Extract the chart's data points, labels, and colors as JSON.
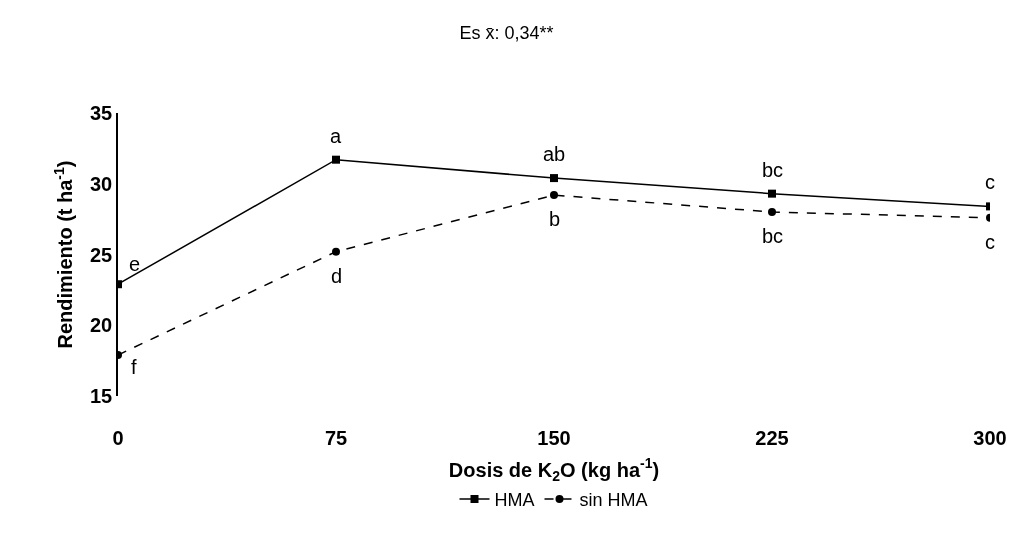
{
  "chart_data": {
    "type": "line",
    "title": "Es x̄: 0,34**",
    "xlabel": "Dosis de K$_{2}$O (kg ha$^{-1}$)",
    "ylabel": "Rendimiento (t ha$^{-1}$)",
    "x": [
      0,
      75,
      150,
      225,
      300
    ],
    "series": [
      {
        "name": "HMA",
        "color": "#000000",
        "marker": "square",
        "line_style": "solid",
        "values": [
          22.9,
          31.7,
          30.4,
          29.3,
          28.4
        ]
      },
      {
        "name": "sin HMA",
        "color": "#000000",
        "marker": "circle",
        "line_style": "dashed",
        "values": [
          17.9,
          25.2,
          29.2,
          28.0,
          27.6
        ]
      }
    ],
    "annotations": [
      {
        "text": "e",
        "x": 0,
        "y": 22.9
      },
      {
        "text": "a",
        "x": 75,
        "y": 31.7
      },
      {
        "text": "ab",
        "x": 150,
        "y": 30.4
      },
      {
        "text": "bc",
        "x": 225,
        "y": 29.3
      },
      {
        "text": "c",
        "x": 300,
        "y": 28.4
      },
      {
        "text": "f",
        "x": 0,
        "y": 17.9
      },
      {
        "text": "d",
        "x": 75,
        "y": 25.2
      },
      {
        "text": "b",
        "x": 150,
        "y": 29.2
      },
      {
        "text": "bc",
        "x": 225,
        "y": 28.0
      },
      {
        "text": "c",
        "x": 300,
        "y": 27.6
      }
    ],
    "xlim": [
      0,
      300
    ],
    "xticks": [
      0,
      75,
      150,
      225,
      300
    ],
    "ylim": [
      15,
      35
    ],
    "yticks": [
      15,
      20,
      25,
      30,
      35
    ],
    "grid": false,
    "legend": "bottom"
  }
}
